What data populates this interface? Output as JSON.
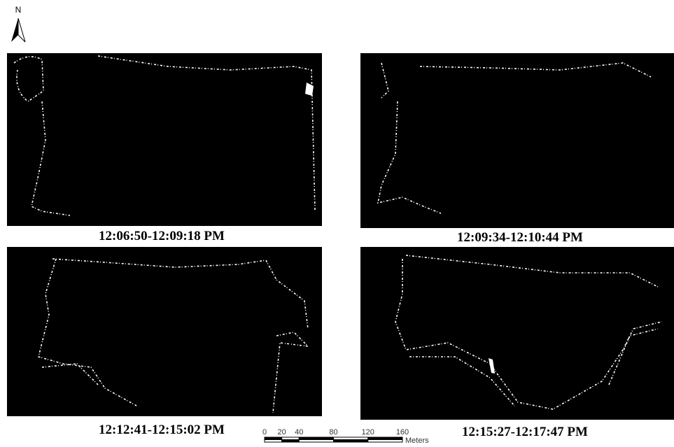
{
  "north_arrow": {
    "label": "N"
  },
  "panels": [
    {
      "caption": "12:06:50-12:09:18 PM"
    },
    {
      "caption": "12:09:34-12:10:44 PM"
    },
    {
      "caption": "12:12:41-12:15:02 PM"
    },
    {
      "caption": "12:15:27-12:17:47 PM"
    }
  ],
  "scale_bar": {
    "ticks": [
      0,
      20,
      40,
      80,
      120,
      160
    ],
    "unit": "Meters"
  }
}
